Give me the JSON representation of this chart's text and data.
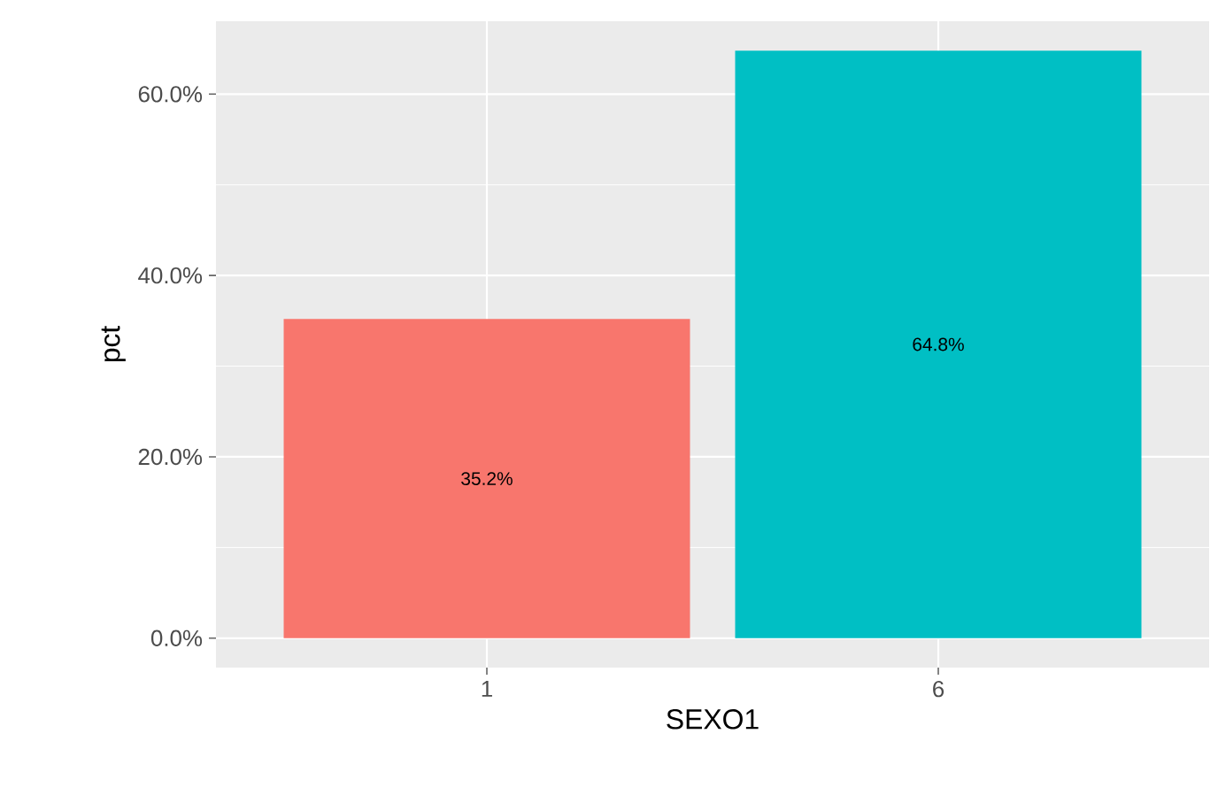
{
  "chart_data": {
    "type": "bar",
    "xlabel": "SEXO1",
    "ylabel": "pct",
    "categories": [
      "1",
      "6"
    ],
    "values": [
      35.2,
      64.8
    ],
    "colors": [
      "#f8766d",
      "#00bfc4"
    ],
    "value_labels": [
      "35.2%",
      "64.8%"
    ],
    "ylim": [
      -3.24,
      68.04
    ],
    "yticks": [
      {
        "value": 0,
        "label": "0.0%"
      },
      {
        "value": 20,
        "label": "20.0%"
      },
      {
        "value": 40,
        "label": "40.0%"
      },
      {
        "value": 60,
        "label": "60.0%"
      }
    ],
    "grid": true
  }
}
